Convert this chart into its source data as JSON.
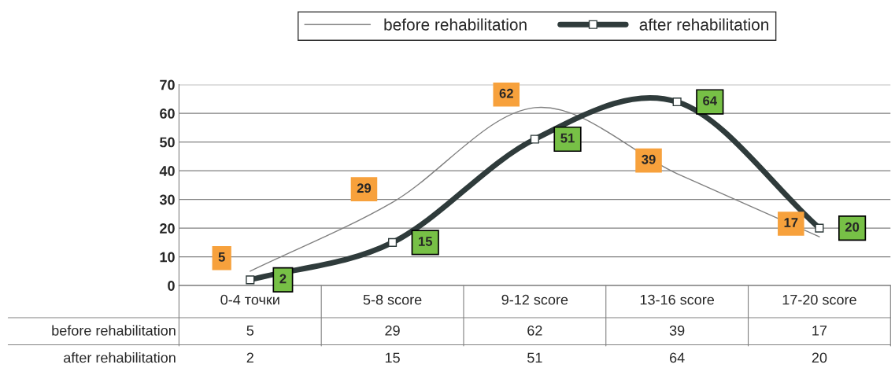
{
  "chart_data": {
    "type": "line",
    "categories": [
      "0-4 точки",
      "5-8 score",
      "9-12 score",
      "13-16 score",
      "17-20 score"
    ],
    "series": [
      {
        "name": "before rehabilitation",
        "color": "#808080",
        "marker": "none",
        "values": [
          5,
          29,
          62,
          39,
          17
        ],
        "value_labels": [
          "5",
          "29",
          "62",
          "39",
          "17"
        ]
      },
      {
        "name": "after rehabilitation",
        "color": "#2f3b3b",
        "marker": "square",
        "values": [
          2,
          15,
          51,
          64,
          20
        ],
        "value_labels": [
          "2",
          "15",
          "51",
          "64",
          "20"
        ]
      }
    ],
    "ylim": [
      0,
      70
    ],
    "yticks": [
      0,
      10,
      20,
      30,
      40,
      50,
      60,
      70
    ],
    "grid": "y",
    "legend": "top"
  }
}
